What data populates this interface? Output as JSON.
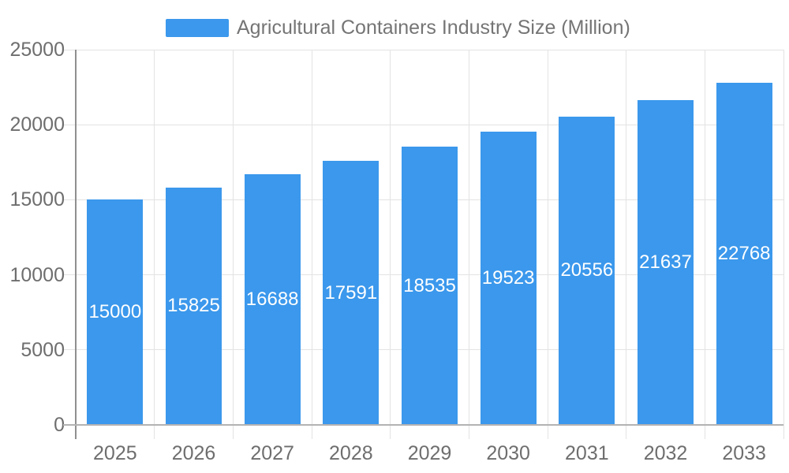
{
  "legend": {
    "label": "Agricultural Containers Industry Size (Million)"
  },
  "chart_data": {
    "type": "bar",
    "title": "Agricultural Containers Industry Size (Million)",
    "categories": [
      "2025",
      "2026",
      "2027",
      "2028",
      "2029",
      "2030",
      "2031",
      "2032",
      "2033"
    ],
    "values": [
      15000,
      15825,
      16688,
      17591,
      18535,
      19523,
      20556,
      21637,
      22768
    ],
    "xlabel": "",
    "ylabel": "",
    "ylim": [
      0,
      25000
    ],
    "yticks": [
      0,
      5000,
      10000,
      15000,
      20000,
      25000
    ],
    "grid": true,
    "legend_position": "top-center",
    "value_labels": "inside-center",
    "colors": {
      "bar": "#3b98ec",
      "grid": "#e3e3e3",
      "axis_y_line": "#8f8f8f",
      "axis_x_line": "#b3b3b3",
      "axis_text": "#6e6e6e",
      "title_text": "#757575",
      "value_label_text": "#ffffff",
      "background": "#ffffff"
    }
  }
}
